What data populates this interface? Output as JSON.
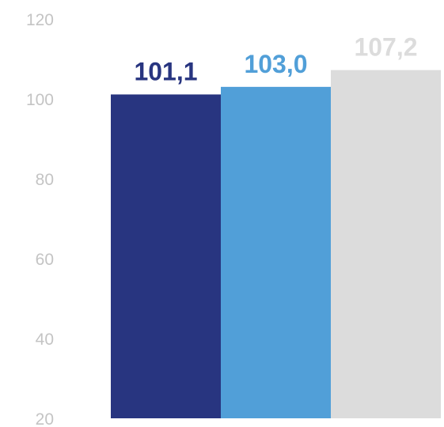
{
  "chart_data": {
    "type": "bar",
    "title": "",
    "xlabel": "",
    "ylabel": "",
    "categories": [
      "",
      "",
      ""
    ],
    "values": [
      101.1,
      103.0,
      107.2
    ],
    "value_labels": [
      "101,1",
      "103,0",
      "107,2"
    ],
    "ylim": [
      20,
      120
    ],
    "y_ticks": [
      20,
      40,
      60,
      80,
      100,
      120
    ],
    "y_tick_labels": [
      "20",
      "40",
      "60",
      "80",
      "100",
      "120"
    ],
    "grid": false,
    "legend": "none",
    "colors": [
      "#283580",
      "#519fd8",
      "#dcdcdc"
    ],
    "label_colors": [
      "#283580",
      "#519fd8",
      "#dcdcdc"
    ],
    "tick_label_color": "#c4c4c4"
  }
}
